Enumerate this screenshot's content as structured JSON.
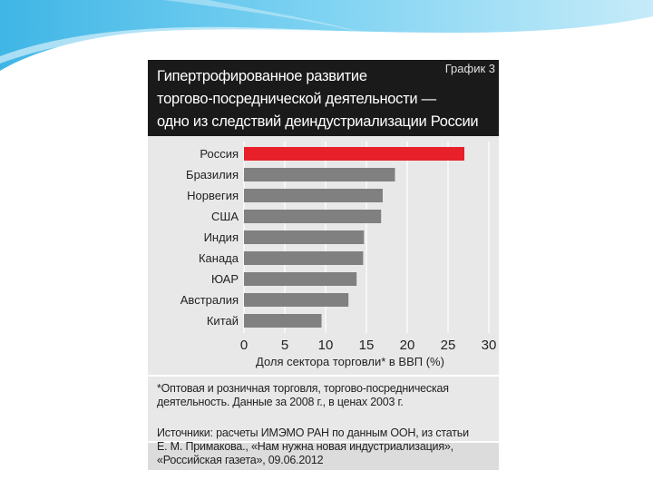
{
  "figure": {
    "title_lines": [
      "Гипертрофированное развитие",
      "торгово-посреднической деятельности —",
      "одно из следствий деиндустриализации России"
    ],
    "figure_number": "График 3",
    "footnote_lines": [
      "*Оптовая и розничная торговля, торгово-посредническая",
      "деятельность. Данные за 2008 г., в ценах 2003 г."
    ],
    "source_lines": [
      "Источники: расчеты ИМЭМО РАН по данным ООН, из статьи",
      "Е. М. Примакова., «Нам нужна новая индустриализация»,",
      "«Российская газета», 09.06.2012"
    ]
  },
  "colors": {
    "highlight_bar": "#e8202a",
    "bar": "#808080",
    "header_bg": "#1a1a1a",
    "panel_bg": "#e8e8e8",
    "top_wave": "#5bc3ea"
  },
  "chart_data": {
    "type": "bar",
    "orientation": "horizontal",
    "categories": [
      "Россия",
      "Бразилия",
      "Норвегия",
      "США",
      "Индия",
      "Канада",
      "ЮАР",
      "Австралия",
      "Китай"
    ],
    "values": [
      27,
      18.5,
      17,
      16.8,
      14.7,
      14.6,
      13.8,
      12.8,
      9.5
    ],
    "highlight": "Россия",
    "xlabel": "Доля сектора торговли* в ВВП (%)",
    "xlim": [
      0,
      30
    ],
    "xticks": [
      0,
      5,
      10,
      15,
      20,
      25,
      30
    ],
    "grid": "vertical"
  }
}
